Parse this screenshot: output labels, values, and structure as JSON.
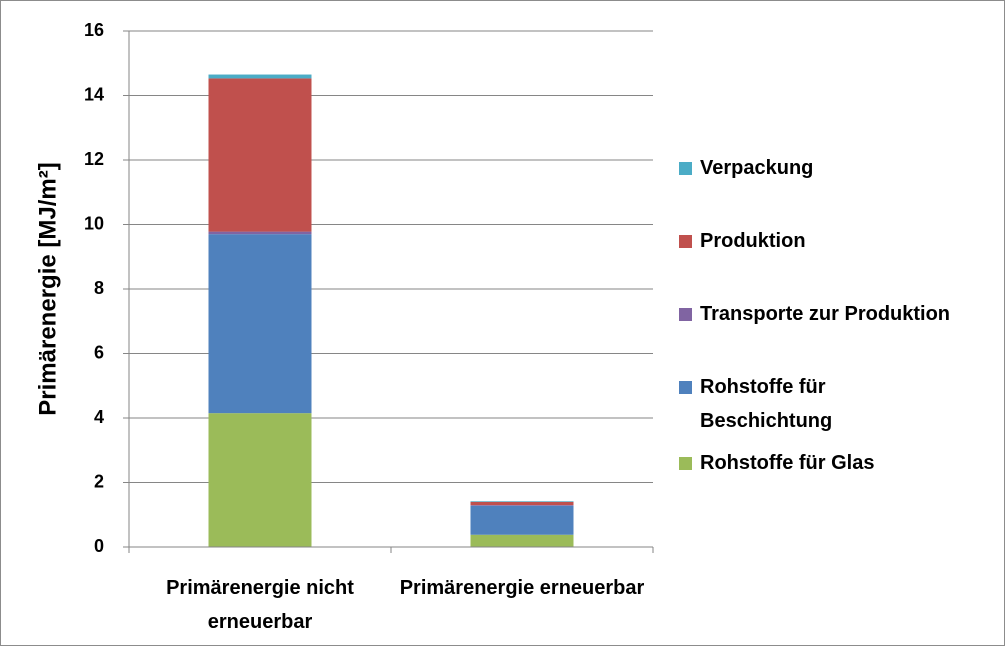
{
  "chart_data": {
    "type": "stacked_bar",
    "y_label": "Primärenergie [MJ/m²]",
    "categories": [
      "Primärenergie nicht erneuerbar",
      "Primärenergie erneuerbar"
    ],
    "series": [
      {
        "name": "Rohstoffe für Glas",
        "color": "#9bbb59",
        "values": [
          4.15,
          0.38
        ]
      },
      {
        "name": "Rohstoffe für Beschichtung",
        "color": "#4f81bd",
        "values": [
          5.55,
          0.9
        ]
      },
      {
        "name": "Transporte zur Produktion",
        "color": "#8064a2",
        "values": [
          0.08,
          0.02
        ]
      },
      {
        "name": "Produktion",
        "color": "#c0504d",
        "values": [
          4.75,
          0.1
        ]
      },
      {
        "name": "Verpackung",
        "color": "#4bacc6",
        "values": [
          0.12,
          0.02
        ]
      }
    ],
    "ylim": [
      0,
      16
    ],
    "yticks": [
      0,
      2,
      4,
      6,
      8,
      10,
      12,
      14,
      16
    ],
    "grid": true
  }
}
